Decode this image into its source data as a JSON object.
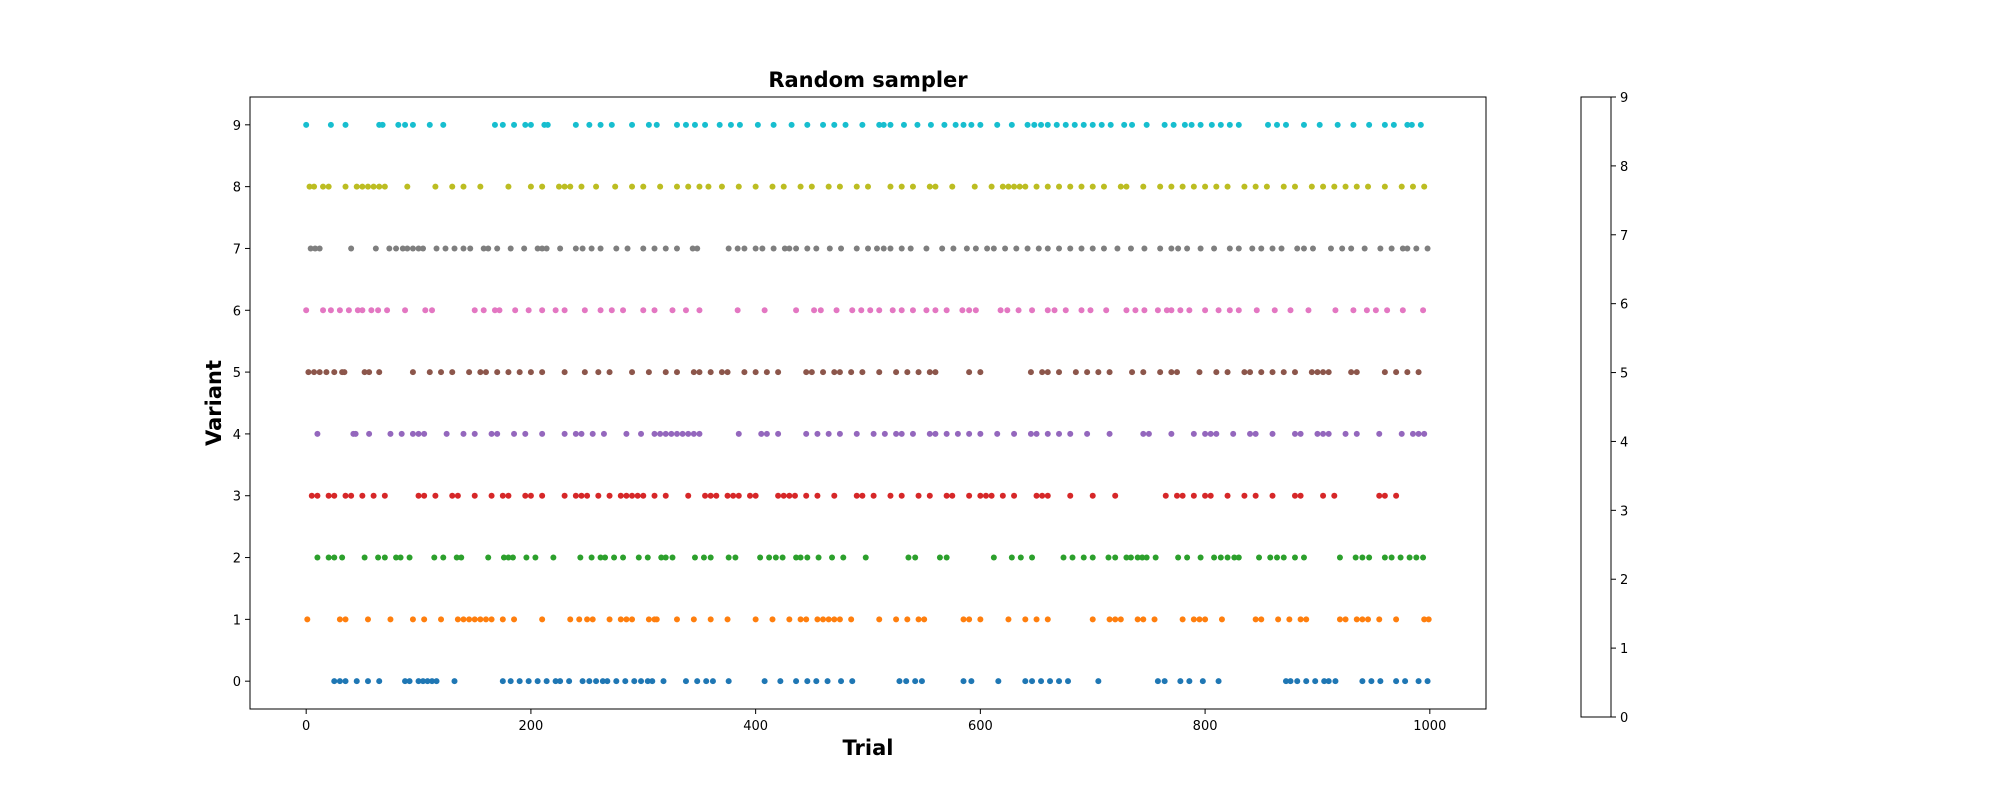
{
  "chart_data": {
    "type": "scatter",
    "title": "Random sampler",
    "xlabel": "Trial",
    "ylabel": "Variant",
    "xlim": [
      -50,
      1050
    ],
    "ylim": [
      -0.45,
      9.45
    ],
    "xticks": [
      "0",
      "200",
      "400",
      "600",
      "800",
      "1000"
    ],
    "yticks": [
      "0",
      "1",
      "2",
      "3",
      "4",
      "5",
      "6",
      "7",
      "8",
      "9"
    ],
    "grid": false,
    "colorbar": {
      "ticks": [
        "0",
        "1",
        "2",
        "3",
        "4",
        "5",
        "6",
        "7",
        "8",
        "9"
      ],
      "colors": [
        "#1f77b4",
        "#ff7f0e",
        "#2ca02c",
        "#d62728",
        "#9467bd",
        "#8c564b",
        "#e377c2",
        "#7f7f7f",
        "#bcbd22",
        "#17becf"
      ]
    },
    "series": [
      {
        "variant": 0,
        "color": "#1f77b4",
        "x": [
          25,
          30,
          35,
          45,
          55,
          65,
          88,
          92,
          100,
          104,
          108,
          112,
          116,
          132,
          175,
          182,
          190,
          198,
          206,
          214,
          222,
          226,
          234,
          246,
          252,
          258,
          264,
          268,
          276,
          284,
          292,
          298,
          304,
          308,
          318,
          338,
          348,
          356,
          362,
          376,
          408,
          422,
          436,
          446,
          454,
          464,
          476,
          486,
          528,
          534,
          542,
          548,
          585,
          592,
          616,
          640,
          646,
          654,
          662,
          670,
          678,
          705,
          758,
          764,
          778,
          786,
          798,
          812,
          872,
          876,
          882,
          890,
          898,
          906,
          910,
          916,
          940,
          948,
          956,
          970,
          978,
          990,
          998
        ]
      },
      {
        "variant": 1,
        "color": "#ff7f0e",
        "x": [
          1,
          30,
          35,
          55,
          75,
          95,
          105,
          120,
          135,
          140,
          145,
          150,
          155,
          160,
          165,
          175,
          185,
          210,
          235,
          243,
          250,
          255,
          270,
          280,
          285,
          290,
          305,
          310,
          312,
          330,
          345,
          360,
          375,
          400,
          415,
          430,
          440,
          445,
          455,
          460,
          465,
          470,
          475,
          485,
          510,
          525,
          535,
          545,
          550,
          585,
          590,
          600,
          625,
          640,
          650,
          660,
          700,
          715,
          720,
          725,
          740,
          745,
          755,
          780,
          790,
          795,
          800,
          815,
          845,
          850,
          865,
          875,
          885,
          890,
          920,
          925,
          935,
          940,
          945,
          955,
          970,
          995,
          999
        ]
      },
      {
        "variant": 2,
        "color": "#2ca02c",
        "x": [
          10,
          20,
          25,
          32,
          52,
          64,
          70,
          80,
          84,
          92,
          114,
          122,
          134,
          138,
          162,
          176,
          180,
          184,
          196,
          204,
          220,
          244,
          254,
          262,
          266,
          274,
          282,
          296,
          304,
          316,
          320,
          326,
          346,
          354,
          360,
          376,
          382,
          404,
          412,
          418,
          424,
          436,
          440,
          446,
          456,
          468,
          478,
          498,
          536,
          542,
          564,
          570,
          612,
          628,
          636,
          646,
          674,
          682,
          692,
          700,
          714,
          720,
          730,
          734,
          740,
          744,
          748,
          756,
          776,
          784,
          796,
          808,
          814,
          820,
          826,
          830,
          848,
          858,
          864,
          870,
          880,
          888,
          920,
          934,
          940,
          946,
          960,
          966,
          974,
          982,
          988,
          994
        ]
      },
      {
        "variant": 3,
        "color": "#d62728",
        "x": [
          5,
          10,
          20,
          25,
          35,
          40,
          50,
          60,
          70,
          100,
          105,
          115,
          130,
          135,
          150,
          165,
          175,
          180,
          195,
          200,
          210,
          230,
          240,
          245,
          250,
          260,
          270,
          280,
          285,
          290,
          295,
          300,
          310,
          320,
          340,
          355,
          360,
          365,
          375,
          380,
          385,
          395,
          400,
          420,
          425,
          430,
          435,
          445,
          455,
          470,
          490,
          495,
          505,
          520,
          530,
          545,
          555,
          570,
          575,
          590,
          600,
          605,
          610,
          620,
          630,
          650,
          655,
          660,
          680,
          700,
          720,
          765,
          775,
          780,
          790,
          800,
          805,
          820,
          835,
          845,
          860,
          880,
          885,
          905,
          915,
          955,
          960,
          970
        ]
      },
      {
        "variant": 4,
        "color": "#9467bd",
        "x": [
          10,
          42,
          44,
          56,
          75,
          85,
          95,
          100,
          105,
          125,
          140,
          150,
          165,
          170,
          185,
          195,
          210,
          230,
          240,
          245,
          255,
          265,
          285,
          298,
          310,
          315,
          320,
          325,
          330,
          335,
          340,
          345,
          350,
          385,
          405,
          410,
          420,
          445,
          455,
          465,
          475,
          490,
          505,
          515,
          525,
          530,
          540,
          555,
          560,
          570,
          580,
          590,
          600,
          615,
          630,
          645,
          650,
          660,
          670,
          680,
          695,
          715,
          745,
          750,
          770,
          790,
          800,
          805,
          810,
          825,
          840,
          845,
          860,
          880,
          885,
          900,
          905,
          910,
          925,
          935,
          955,
          975,
          985,
          990,
          995
        ]
      },
      {
        "variant": 5,
        "color": "#8c564b",
        "x": [
          2,
          7,
          12,
          18,
          25,
          32,
          34,
          52,
          56,
          65,
          95,
          110,
          120,
          130,
          145,
          155,
          160,
          170,
          180,
          190,
          200,
          210,
          230,
          248,
          260,
          270,
          290,
          305,
          320,
          330,
          345,
          350,
          360,
          370,
          375,
          390,
          400,
          410,
          420,
          445,
          450,
          460,
          470,
          475,
          485,
          495,
          510,
          525,
          535,
          545,
          555,
          560,
          590,
          600,
          645,
          655,
          660,
          670,
          685,
          695,
          705,
          715,
          735,
          745,
          760,
          770,
          775,
          795,
          810,
          820,
          835,
          840,
          850,
          860,
          870,
          880,
          895,
          900,
          905,
          910,
          930,
          935,
          960,
          970,
          980,
          990
        ]
      },
      {
        "variant": 6,
        "color": "#e377c2",
        "x": [
          0,
          15,
          22,
          30,
          38,
          46,
          50,
          58,
          64,
          72,
          88,
          106,
          112,
          150,
          158,
          168,
          172,
          186,
          198,
          210,
          222,
          230,
          248,
          262,
          272,
          282,
          300,
          310,
          326,
          338,
          350,
          384,
          408,
          436,
          452,
          458,
          472,
          486,
          494,
          502,
          510,
          522,
          530,
          540,
          552,
          560,
          570,
          584,
          590,
          596,
          618,
          624,
          634,
          646,
          660,
          666,
          676,
          690,
          698,
          712,
          730,
          738,
          746,
          758,
          766,
          770,
          778,
          786,
          800,
          812,
          822,
          830,
          846,
          862,
          876,
          892,
          916,
          932,
          944,
          952,
          962,
          976,
          994
        ]
      },
      {
        "variant": 7,
        "color": "#7f7f7f",
        "x": [
          4,
          8,
          12,
          40,
          62,
          74,
          80,
          86,
          90,
          95,
          100,
          104,
          116,
          124,
          132,
          140,
          146,
          158,
          162,
          170,
          182,
          194,
          206,
          210,
          214,
          226,
          240,
          246,
          254,
          262,
          276,
          286,
          300,
          310,
          320,
          330,
          344,
          348,
          376,
          384,
          390,
          400,
          406,
          416,
          426,
          430,
          436,
          446,
          454,
          466,
          476,
          490,
          500,
          508,
          514,
          520,
          530,
          538,
          552,
          566,
          576,
          588,
          596,
          606,
          612,
          622,
          632,
          642,
          652,
          660,
          670,
          680,
          690,
          700,
          710,
          722,
          734,
          746,
          760,
          770,
          776,
          784,
          796,
          808,
          822,
          830,
          842,
          850,
          860,
          868,
          882,
          888,
          896,
          912,
          922,
          930,
          942,
          956,
          966,
          976,
          980,
          988,
          998
        ]
      },
      {
        "variant": 8,
        "color": "#bcbd22",
        "x": [
          3,
          7,
          15,
          20,
          35,
          45,
          50,
          55,
          60,
          65,
          70,
          90,
          115,
          130,
          140,
          155,
          180,
          200,
          210,
          225,
          230,
          235,
          245,
          258,
          275,
          290,
          300,
          315,
          330,
          340,
          350,
          358,
          370,
          385,
          400,
          415,
          425,
          440,
          450,
          465,
          475,
          490,
          500,
          520,
          530,
          540,
          555,
          560,
          575,
          595,
          610,
          620,
          625,
          630,
          635,
          640,
          650,
          660,
          670,
          680,
          690,
          700,
          710,
          725,
          730,
          745,
          760,
          770,
          780,
          790,
          800,
          810,
          820,
          835,
          845,
          855,
          870,
          880,
          895,
          905,
          915,
          925,
          935,
          945,
          960,
          975,
          985,
          995
        ]
      },
      {
        "variant": 9,
        "color": "#17becf",
        "x": [
          0,
          22,
          35,
          65,
          68,
          82,
          88,
          95,
          110,
          122,
          168,
          175,
          185,
          195,
          200,
          212,
          215,
          240,
          252,
          262,
          272,
          290,
          305,
          312,
          330,
          338,
          346,
          355,
          368,
          378,
          386,
          402,
          416,
          432,
          446,
          460,
          470,
          480,
          495,
          510,
          514,
          520,
          532,
          544,
          556,
          568,
          578,
          585,
          592,
          600,
          615,
          628,
          642,
          648,
          654,
          660,
          668,
          676,
          684,
          692,
          700,
          708,
          716,
          728,
          735,
          748,
          764,
          772,
          782,
          788,
          796,
          806,
          814,
          822,
          830,
          856,
          864,
          872,
          888,
          902,
          918,
          932,
          946,
          960,
          968,
          980,
          984,
          992
        ]
      }
    ]
  }
}
